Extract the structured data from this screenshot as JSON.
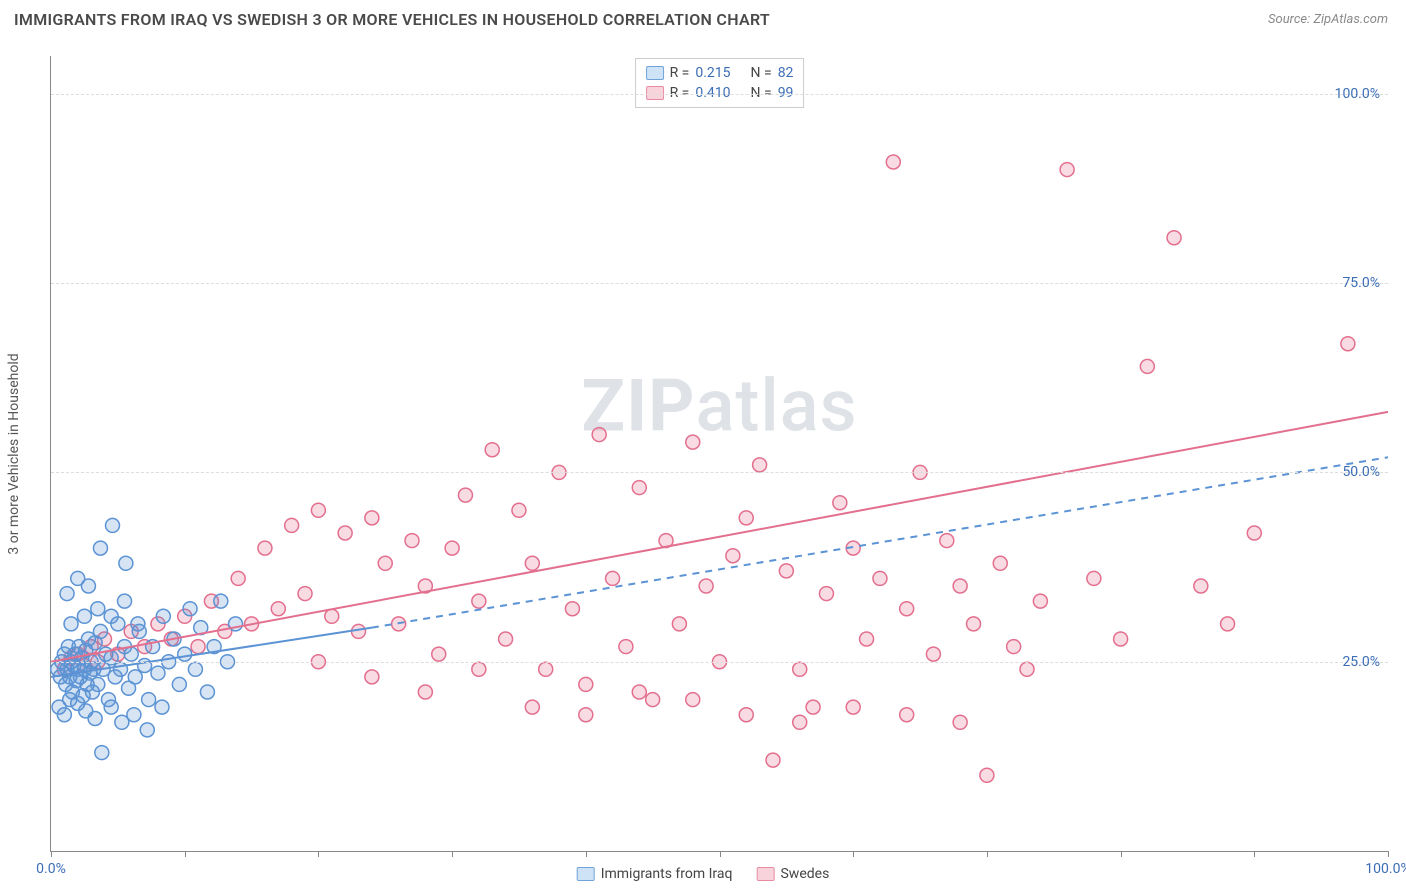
{
  "header": {
    "title": "IMMIGRANTS FROM IRAQ VS SWEDISH 3 OR MORE VEHICLES IN HOUSEHOLD CORRELATION CHART",
    "source_prefix": "Source: ",
    "source": "ZipAtlas.com"
  },
  "chart": {
    "type": "scatter",
    "y_axis_label": "3 or more Vehicles in Household",
    "xlim": [
      0,
      100
    ],
    "ylim": [
      0,
      105
    ],
    "x_ticks": [
      0,
      10,
      20,
      30,
      40,
      50,
      60,
      70,
      80,
      90,
      100
    ],
    "x_tick_labels": {
      "0": "0.0%",
      "100": "100.0%"
    },
    "y_ticks": [
      25,
      50,
      75,
      100
    ],
    "y_tick_labels": {
      "25": "25.0%",
      "50": "50.0%",
      "75": "75.0%",
      "100": "100.0%"
    },
    "background_color": "#ffffff",
    "grid_color": "#dddddd",
    "axis_color": "#888888",
    "tick_label_color": "#3b6db5",
    "marker_radius": 7,
    "marker_stroke_width": 1.5,
    "marker_fill_opacity": 0.25,
    "trend_line_width": 2,
    "watermark_text_bold": "ZIP",
    "watermark_text_rest": "atlas"
  },
  "stats_legend": {
    "rows": [
      {
        "swatch_fill": "#cfe3f7",
        "swatch_stroke": "#6fa4db",
        "r_label": "R =",
        "r": "0.215",
        "n_label": "N =",
        "n": "82"
      },
      {
        "swatch_fill": "#f8d3dc",
        "swatch_stroke": "#e98ca3",
        "r_label": "R =",
        "r": "0.410",
        "n_label": "N =",
        "n": "99"
      }
    ]
  },
  "bottom_legend": {
    "items": [
      {
        "swatch_fill": "#cfe3f7",
        "swatch_stroke": "#6fa4db",
        "label": "Immigrants from Iraq"
      },
      {
        "swatch_fill": "#f8d3dc",
        "swatch_stroke": "#e98ca3",
        "label": "Swedes"
      }
    ]
  },
  "series": {
    "iraq": {
      "color_stroke": "#5b93d4",
      "color_fill": "#5b93d4",
      "trend": {
        "x1": 0,
        "y1": 23,
        "x2": 24,
        "y2": 29.5,
        "dash": "0",
        "extend_dash_to_x": 100,
        "extend_dash_to_y": 52
      },
      "points": [
        [
          0.5,
          24
        ],
        [
          0.7,
          23
        ],
        [
          0.8,
          25
        ],
        [
          1.0,
          26
        ],
        [
          1.1,
          22
        ],
        [
          1.2,
          24
        ],
        [
          1.3,
          27
        ],
        [
          1.4,
          23
        ],
        [
          1.5,
          25
        ],
        [
          1.6,
          21
        ],
        [
          1.7,
          24.5
        ],
        [
          1.8,
          26
        ],
        [
          1.9,
          22.5
        ],
        [
          2.0,
          24
        ],
        [
          2.1,
          27
        ],
        [
          2.2,
          23
        ],
        [
          2.3,
          25.5
        ],
        [
          2.4,
          20.5
        ],
        [
          2.5,
          24
        ],
        [
          2.6,
          26.5
        ],
        [
          2.7,
          22
        ],
        [
          2.8,
          28
        ],
        [
          2.9,
          23.5
        ],
        [
          3.0,
          25
        ],
        [
          3.1,
          21
        ],
        [
          3.2,
          24
        ],
        [
          3.3,
          27.5
        ],
        [
          3.5,
          22
        ],
        [
          3.7,
          29
        ],
        [
          3.9,
          24
        ],
        [
          4.1,
          26
        ],
        [
          4.3,
          20
        ],
        [
          4.5,
          25.5
        ],
        [
          4.8,
          23
        ],
        [
          5.0,
          30
        ],
        [
          5.2,
          24
        ],
        [
          5.5,
          27
        ],
        [
          5.8,
          21.5
        ],
        [
          6.0,
          26
        ],
        [
          6.3,
          23
        ],
        [
          6.6,
          29
        ],
        [
          7.0,
          24.5
        ],
        [
          7.3,
          20
        ],
        [
          7.6,
          27
        ],
        [
          8.0,
          23.5
        ],
        [
          8.4,
          31
        ],
        [
          8.8,
          25
        ],
        [
          9.2,
          28
        ],
        [
          9.6,
          22
        ],
        [
          10.0,
          26
        ],
        [
          10.4,
          32
        ],
        [
          10.8,
          24
        ],
        [
          11.2,
          29.5
        ],
        [
          11.7,
          21
        ],
        [
          12.2,
          27
        ],
        [
          12.7,
          33
        ],
        [
          13.2,
          25
        ],
        [
          13.8,
          30
        ],
        [
          0.6,
          19
        ],
        [
          1.0,
          18
        ],
        [
          1.4,
          20
        ],
        [
          2.0,
          19.5
        ],
        [
          2.6,
          18.5
        ],
        [
          3.3,
          17.5
        ],
        [
          3.8,
          13
        ],
        [
          4.5,
          19
        ],
        [
          5.3,
          17
        ],
        [
          6.2,
          18
        ],
        [
          7.2,
          16
        ],
        [
          8.3,
          19
        ],
        [
          1.2,
          34
        ],
        [
          2.0,
          36
        ],
        [
          2.8,
          35
        ],
        [
          3.7,
          40
        ],
        [
          4.6,
          43
        ],
        [
          5.6,
          38
        ],
        [
          1.5,
          30
        ],
        [
          2.5,
          31
        ],
        [
          3.5,
          32
        ],
        [
          4.5,
          31
        ],
        [
          5.5,
          33
        ],
        [
          6.5,
          30
        ]
      ]
    },
    "swedes": {
      "color_stroke": "#e36f8e",
      "color_fill": "#e36f8e",
      "trend": {
        "x1": 0,
        "y1": 25,
        "x2": 100,
        "y2": 58,
        "dash": "0"
      },
      "points": [
        [
          1,
          24
        ],
        [
          1.5,
          25.5
        ],
        [
          2,
          26
        ],
        [
          2.5,
          24.5
        ],
        [
          3,
          27
        ],
        [
          3.5,
          25
        ],
        [
          4,
          28
        ],
        [
          5,
          26
        ],
        [
          6,
          29
        ],
        [
          7,
          27
        ],
        [
          8,
          30
        ],
        [
          9,
          28
        ],
        [
          10,
          31
        ],
        [
          11,
          27
        ],
        [
          12,
          33
        ],
        [
          13,
          29
        ],
        [
          14,
          36
        ],
        [
          15,
          30
        ],
        [
          16,
          40
        ],
        [
          17,
          32
        ],
        [
          18,
          43
        ],
        [
          19,
          34
        ],
        [
          20,
          45
        ],
        [
          21,
          31
        ],
        [
          22,
          42
        ],
        [
          23,
          29
        ],
        [
          24,
          44
        ],
        [
          25,
          38
        ],
        [
          26,
          30
        ],
        [
          27,
          41
        ],
        [
          28,
          35
        ],
        [
          29,
          26
        ],
        [
          30,
          40
        ],
        [
          31,
          47
        ],
        [
          32,
          33
        ],
        [
          33,
          53
        ],
        [
          34,
          28
        ],
        [
          35,
          45
        ],
        [
          36,
          38
        ],
        [
          37,
          24
        ],
        [
          38,
          50
        ],
        [
          39,
          32
        ],
        [
          40,
          22
        ],
        [
          41,
          55
        ],
        [
          42,
          36
        ],
        [
          43,
          27
        ],
        [
          44,
          48
        ],
        [
          45,
          20
        ],
        [
          46,
          41
        ],
        [
          47,
          30
        ],
        [
          48,
          54
        ],
        [
          49,
          35
        ],
        [
          50,
          25
        ],
        [
          51,
          39
        ],
        [
          52,
          44
        ],
        [
          53,
          51
        ],
        [
          54,
          12
        ],
        [
          55,
          37
        ],
        [
          56,
          24
        ],
        [
          57,
          19
        ],
        [
          58,
          34
        ],
        [
          59,
          46
        ],
        [
          60,
          40
        ],
        [
          61,
          28
        ],
        [
          62,
          36
        ],
        [
          63,
          91
        ],
        [
          64,
          32
        ],
        [
          65,
          50
        ],
        [
          66,
          26
        ],
        [
          67,
          41
        ],
        [
          68,
          35
        ],
        [
          69,
          30
        ],
        [
          70,
          10
        ],
        [
          71,
          38
        ],
        [
          72,
          27
        ],
        [
          73,
          24
        ],
        [
          74,
          33
        ],
        [
          76,
          90
        ],
        [
          78,
          36
        ],
        [
          80,
          28
        ],
        [
          82,
          64
        ],
        [
          84,
          81
        ],
        [
          86,
          35
        ],
        [
          88,
          30
        ],
        [
          90,
          42
        ],
        [
          97,
          67
        ],
        [
          20,
          25
        ],
        [
          24,
          23
        ],
        [
          28,
          21
        ],
        [
          32,
          24
        ],
        [
          36,
          19
        ],
        [
          40,
          18
        ],
        [
          44,
          21
        ],
        [
          48,
          20
        ],
        [
          52,
          18
        ],
        [
          56,
          17
        ],
        [
          60,
          19
        ],
        [
          64,
          18
        ],
        [
          68,
          17
        ]
      ]
    }
  }
}
